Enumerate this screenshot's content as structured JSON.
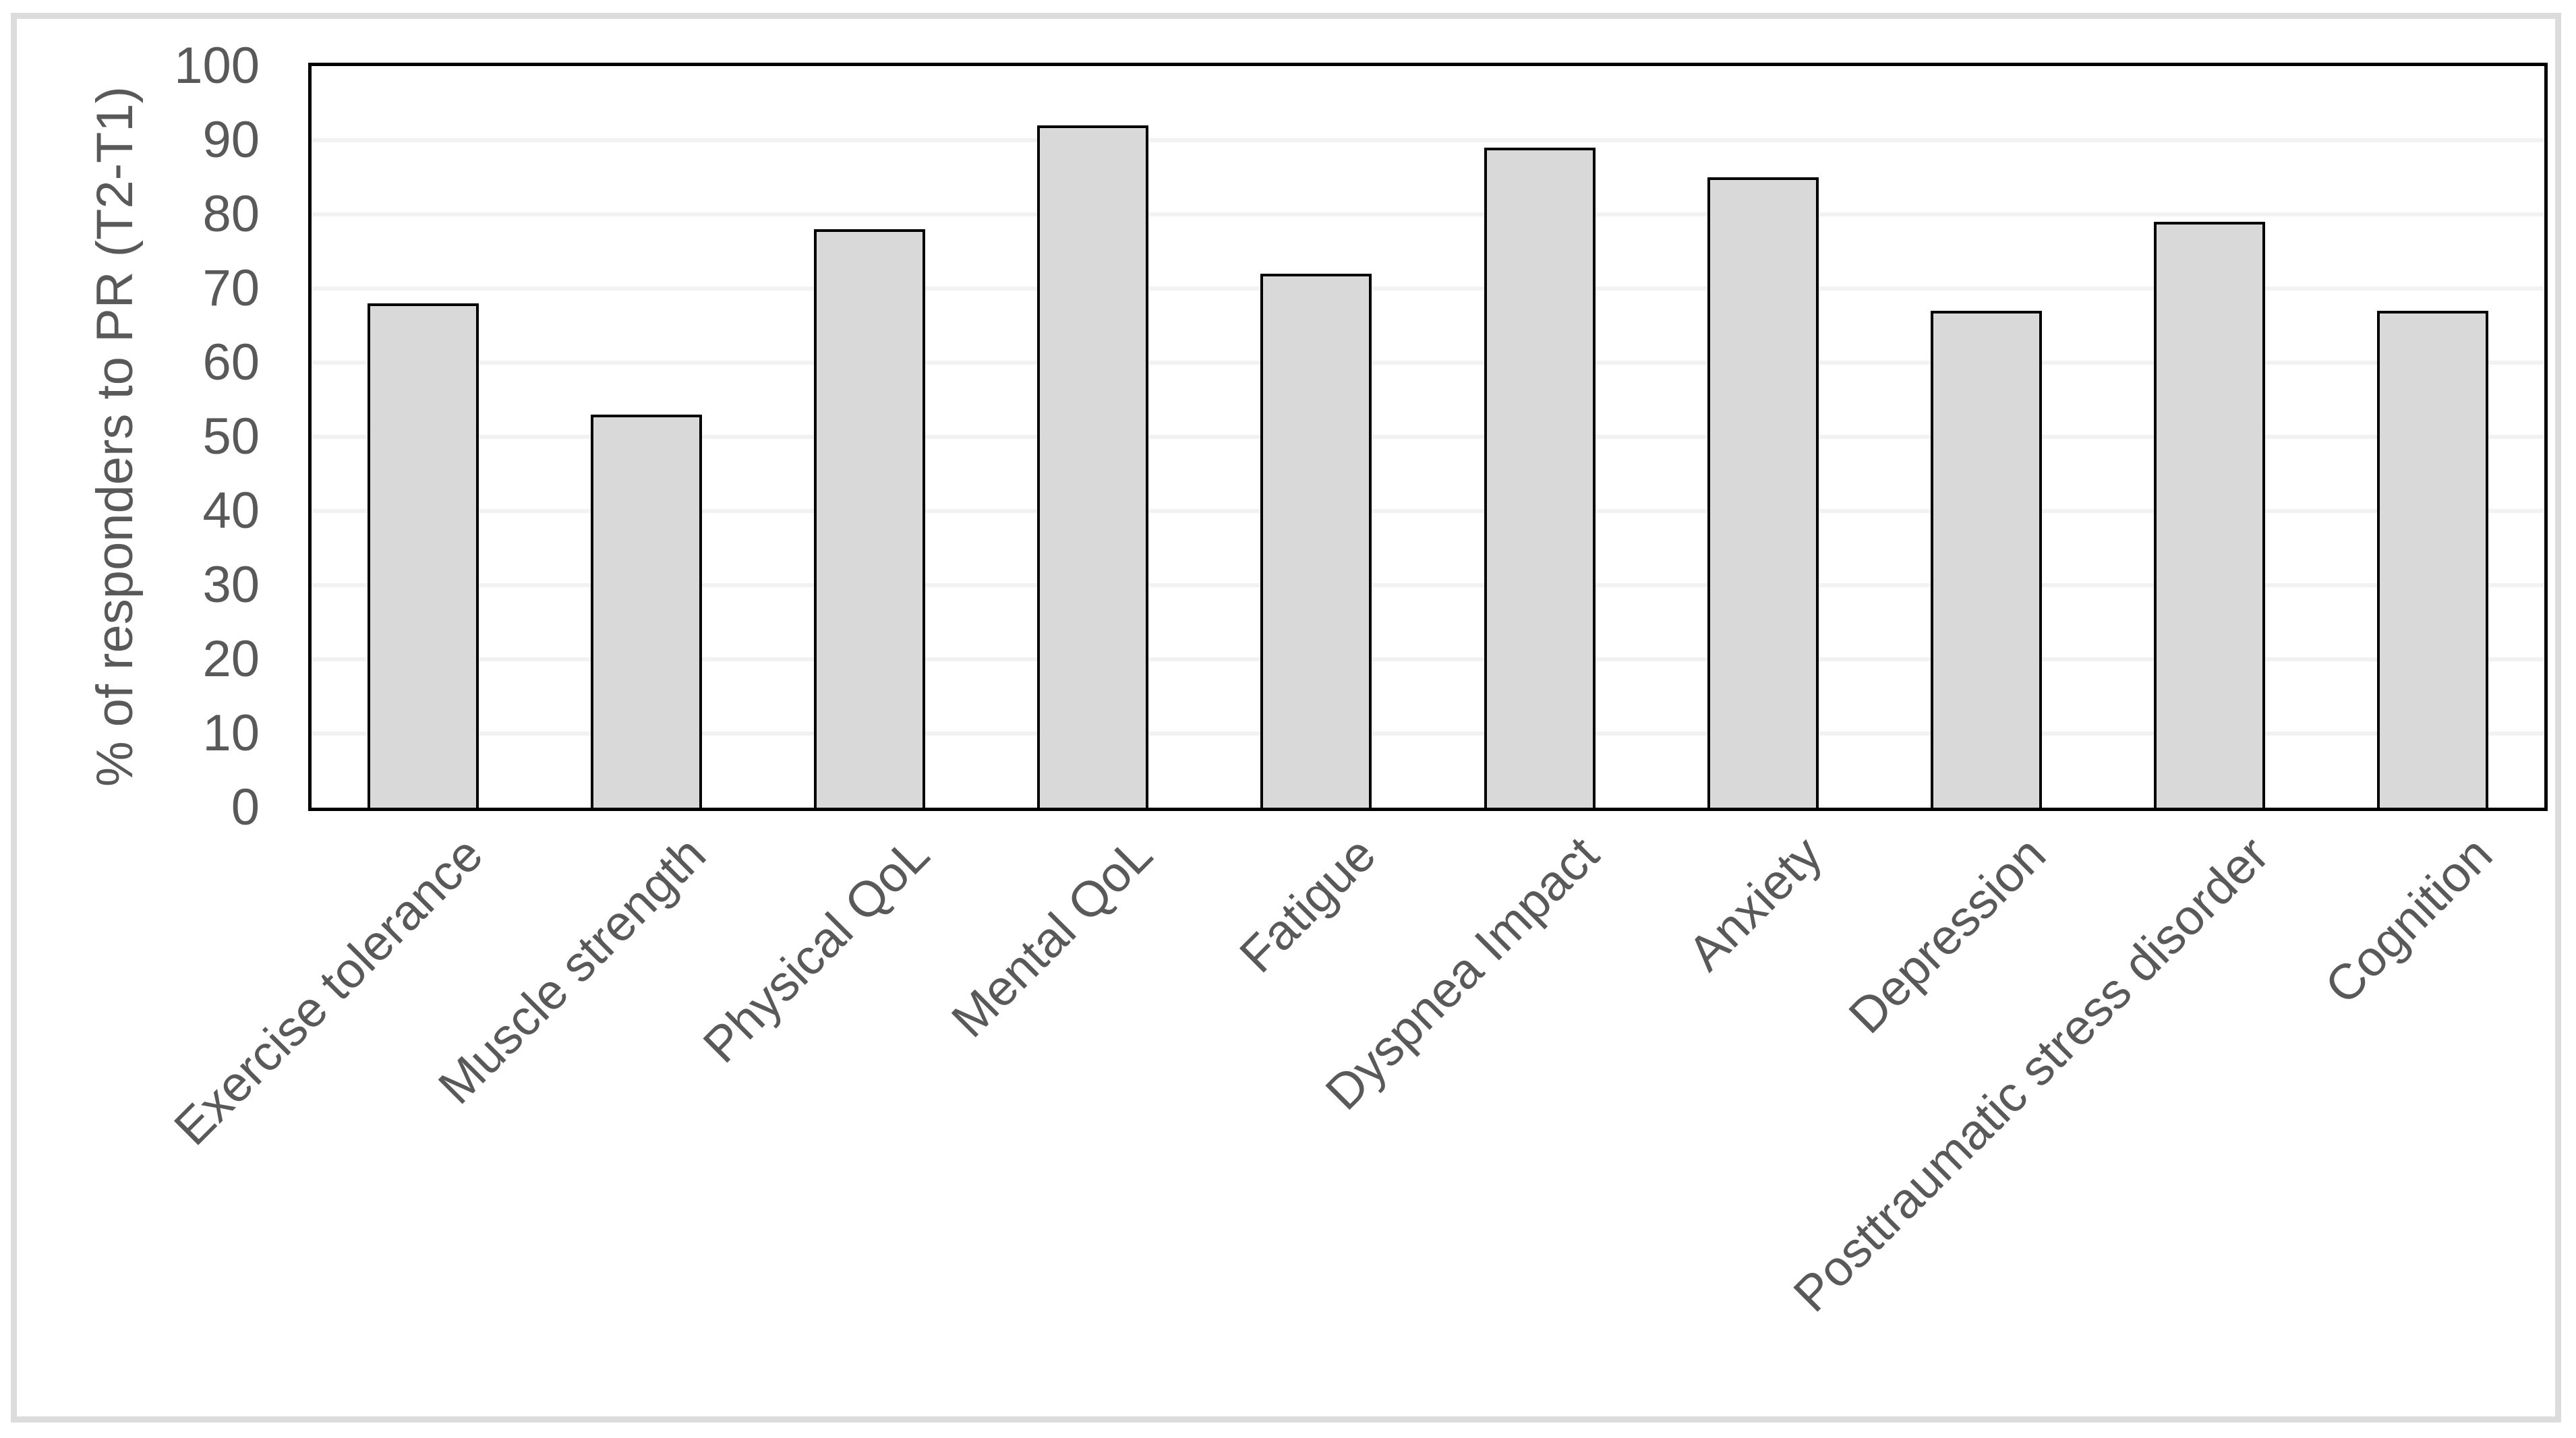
{
  "chart_data": {
    "type": "bar",
    "title": "",
    "ylabel": "% of responders to PR (T2-T1)",
    "xlabel": "",
    "categories": [
      "Exercise tolerance",
      "Muscle strength",
      "Physical QoL",
      "Mental QoL",
      "Fatigue",
      "Dyspnea Impact",
      "Anxiety",
      "Depression",
      "Posttraumatic stress disorder",
      "Cognition"
    ],
    "values": [
      68,
      53,
      78,
      92,
      72,
      89,
      85,
      67,
      79,
      67
    ],
    "ylim": [
      0,
      100
    ],
    "yticks": [
      0,
      10,
      20,
      30,
      40,
      50,
      60,
      70,
      80,
      90,
      100
    ],
    "grid": "horizontal-light",
    "legend": "none",
    "bar_count": 10,
    "colors": {
      "bar_fill": "#d9d9d9",
      "bar_border": "#000000",
      "axis_line": "#000000",
      "gridline": "#f2f2f2",
      "tick_text": "#595959",
      "frame": "#dcdcdc",
      "background": "#ffffff"
    }
  }
}
